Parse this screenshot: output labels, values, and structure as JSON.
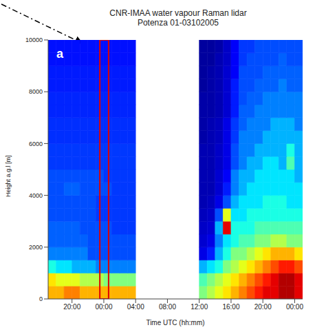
{
  "chart_data": {
    "type": "heatmap",
    "title": "CNR-IMAA water vapour Raman lidar",
    "subtitle": "Potenza 01-03102005",
    "panel_label": "a",
    "x_label": "Time UTC (hh:mm)",
    "y_label": "Height a.g.l [m]",
    "xlim": [
      17,
      49
    ],
    "xticks": [
      {
        "value": 20,
        "label": "20:00"
      },
      {
        "value": 24,
        "label": "00:00"
      },
      {
        "value": 28,
        "label": "04:00"
      },
      {
        "value": 32,
        "label": "08:00"
      },
      {
        "value": 36,
        "label": "12:00"
      },
      {
        "value": 40,
        "label": "16:00"
      },
      {
        "value": 44,
        "label": "20:00"
      },
      {
        "value": 48,
        "label": "00:00"
      }
    ],
    "ylim": [
      0,
      10000
    ],
    "yticks": [
      0,
      2000,
      4000,
      6000,
      8000,
      10000
    ],
    "highlight": {
      "x": [
        23.5,
        24.6
      ]
    },
    "cells": {
      "zlim": [
        0,
        10
      ],
      "x_edges": [
        17,
        18,
        19,
        20,
        21,
        22,
        23,
        24,
        25,
        26,
        27,
        28,
        29,
        30,
        31,
        32,
        33,
        34,
        35,
        36,
        37,
        38,
        39,
        40,
        41,
        42,
        43,
        44,
        45,
        46,
        47,
        48,
        49
      ],
      "y_edges": [
        0,
        500,
        1000,
        1500,
        2000,
        2500,
        3000,
        3500,
        4000,
        4500,
        5000,
        5500,
        6000,
        6500,
        7000,
        7500,
        8000,
        8500,
        9000,
        9500,
        10000
      ],
      "z": [
        [
          7,
          7,
          7.5,
          7.5,
          7,
          7,
          7,
          7,
          7,
          7,
          7,
          null,
          null,
          null,
          null,
          null,
          null,
          null,
          null,
          5,
          5.5,
          6,
          6.5,
          7,
          7.5,
          8,
          8.5,
          9,
          9,
          9.5,
          9.5,
          9
        ],
        [
          6.5,
          6,
          6,
          6,
          5.5,
          5.5,
          5.5,
          5,
          5,
          5,
          5,
          null,
          null,
          null,
          null,
          null,
          null,
          null,
          null,
          4.5,
          5,
          5.5,
          6,
          6.5,
          7,
          7.5,
          8,
          8.5,
          9,
          9.5,
          9.5,
          9
        ],
        [
          4,
          3.5,
          3.5,
          3,
          3,
          3,
          2.5,
          2.5,
          2.5,
          2.5,
          2.5,
          null,
          null,
          null,
          null,
          null,
          null,
          null,
          null,
          3,
          3.5,
          4,
          5,
          5.5,
          6,
          6.5,
          7,
          7.5,
          8,
          8.5,
          8.5,
          8
        ],
        [
          2.5,
          2.5,
          2.5,
          2.5,
          2.5,
          2,
          2,
          2,
          2,
          2,
          2,
          null,
          null,
          null,
          null,
          null,
          null,
          null,
          null,
          1,
          1.5,
          3,
          4,
          5,
          5,
          5.5,
          6,
          6.5,
          7,
          7,
          7,
          6.5
        ],
        [
          2.2,
          2.2,
          2.2,
          2.2,
          2.2,
          2,
          2,
          2,
          2,
          2,
          2,
          null,
          null,
          null,
          null,
          null,
          null,
          null,
          null,
          0.8,
          1,
          2.5,
          3.5,
          4,
          4.5,
          4.5,
          5,
          5,
          5.5,
          5.5,
          5,
          5
        ],
        [
          2.2,
          2.2,
          2.2,
          2.2,
          2,
          2,
          2,
          2,
          1.8,
          1.8,
          1.8,
          null,
          null,
          null,
          null,
          null,
          null,
          null,
          null,
          0.7,
          0.8,
          3,
          9,
          4,
          4,
          4,
          4.5,
          4.5,
          4.5,
          4.5,
          4.5,
          4.5
        ],
        [
          2,
          2,
          2,
          2,
          2,
          2,
          1.8,
          1.8,
          1.8,
          1.8,
          1.8,
          null,
          null,
          null,
          null,
          null,
          null,
          null,
          null,
          0.6,
          0.7,
          2,
          6,
          3.5,
          3.5,
          4,
          4,
          4,
          4,
          4,
          4,
          4
        ],
        [
          2,
          2,
          2,
          2,
          2,
          2,
          1.8,
          1.8,
          1.8,
          1.8,
          1.8,
          null,
          null,
          null,
          null,
          null,
          null,
          null,
          null,
          0.5,
          0.6,
          1,
          2,
          3,
          3.5,
          3.5,
          3.5,
          4,
          4,
          4,
          3.5,
          3.5
        ],
        [
          2,
          2,
          2.2,
          2.2,
          2,
          2,
          2,
          2,
          1.8,
          1.8,
          1.8,
          null,
          null,
          null,
          null,
          null,
          null,
          null,
          null,
          0.5,
          0.5,
          0.8,
          1.5,
          2.5,
          3,
          3.5,
          3.5,
          3.5,
          3.5,
          3.5,
          3.5,
          3.5
        ],
        [
          2,
          2,
          2,
          2,
          2,
          2,
          2,
          1.8,
          1.8,
          1.8,
          1.8,
          null,
          null,
          null,
          null,
          null,
          null,
          null,
          null,
          0.5,
          0.5,
          0.8,
          1.2,
          2.5,
          3,
          3,
          3.5,
          3.5,
          3.5,
          3.5,
          3.5,
          3
        ],
        [
          1.8,
          1.8,
          1.8,
          1.8,
          1.8,
          1.8,
          1.8,
          1.8,
          1.8,
          1.8,
          1.8,
          null,
          null,
          null,
          null,
          null,
          null,
          null,
          null,
          0.5,
          0.5,
          0.7,
          1,
          2,
          2.5,
          3,
          3,
          3.5,
          3.5,
          3,
          4.5,
          3
        ],
        [
          1.8,
          1.8,
          1.8,
          1.8,
          1.8,
          1.8,
          1.8,
          1.8,
          1.8,
          1.8,
          1.8,
          null,
          null,
          null,
          null,
          null,
          null,
          null,
          null,
          0.5,
          0.5,
          0.7,
          1,
          2,
          2.5,
          2.5,
          3,
          3,
          3,
          3,
          4,
          3
        ],
        [
          1.7,
          1.7,
          1.7,
          1.7,
          1.7,
          1.7,
          1.7,
          1.7,
          1.7,
          1.7,
          1.7,
          null,
          null,
          null,
          null,
          null,
          null,
          null,
          null,
          0.4,
          0.5,
          0.6,
          1,
          1.8,
          2.5,
          2.5,
          2.5,
          3,
          3,
          3,
          3,
          3
        ],
        [
          1.7,
          1.7,
          1.7,
          1.7,
          1.7,
          1.7,
          1.7,
          1.7,
          1.7,
          1.7,
          1.7,
          null,
          null,
          null,
          null,
          null,
          null,
          null,
          null,
          0.4,
          0.5,
          0.6,
          1,
          1.8,
          2.2,
          2.5,
          2.5,
          2.5,
          3,
          3,
          3,
          2.5
        ],
        [
          1.6,
          1.6,
          1.6,
          1.6,
          1.6,
          1.6,
          1.6,
          1.6,
          1.6,
          1.6,
          1.6,
          null,
          null,
          null,
          null,
          null,
          null,
          null,
          null,
          0.4,
          0.4,
          0.5,
          0.8,
          1.5,
          2.2,
          2.2,
          2.5,
          2.5,
          2.5,
          2.5,
          2.5,
          2.5
        ],
        [
          1.6,
          1.6,
          1.6,
          1.6,
          1.6,
          1.6,
          1.6,
          1.6,
          1.6,
          1.6,
          1.6,
          null,
          null,
          null,
          null,
          null,
          null,
          null,
          null,
          0.4,
          0.4,
          0.5,
          0.8,
          1.5,
          2,
          2.2,
          2.2,
          2.5,
          2.5,
          2.5,
          2.5,
          2.5
        ],
        [
          1.5,
          1.5,
          1.5,
          1.5,
          1.5,
          1.5,
          1.5,
          1.5,
          1.5,
          1.5,
          1.5,
          null,
          null,
          null,
          null,
          null,
          null,
          null,
          null,
          0.3,
          0.4,
          0.5,
          0.8,
          1.5,
          2,
          2,
          2.2,
          2.2,
          2.2,
          2.5,
          2.2,
          2.2
        ],
        [
          1.5,
          1.5,
          1.5,
          1.5,
          1.5,
          1.5,
          1.5,
          1.5,
          1.5,
          1.5,
          1.5,
          null,
          null,
          null,
          null,
          null,
          null,
          null,
          null,
          0.3,
          0.4,
          0.5,
          0.8,
          1.2,
          2,
          2,
          2,
          2.2,
          2.2,
          2.2,
          2.2,
          2.2
        ],
        [
          1.4,
          1.4,
          1.4,
          1.4,
          1.4,
          1.4,
          1.4,
          1.4,
          1.4,
          1.4,
          1.4,
          null,
          null,
          null,
          null,
          null,
          null,
          null,
          null,
          0.3,
          0.3,
          0.5,
          0.7,
          1.2,
          1.8,
          2,
          2,
          2,
          2,
          2.2,
          2,
          2
        ],
        [
          1.4,
          1.4,
          1.4,
          1.4,
          1.4,
          1.4,
          1.4,
          1.4,
          1.4,
          1.4,
          1.4,
          null,
          null,
          null,
          null,
          null,
          null,
          null,
          null,
          0.3,
          0.3,
          0.4,
          0.7,
          1.2,
          1.8,
          1.8,
          2,
          2,
          2,
          2,
          2,
          2
        ]
      ]
    }
  }
}
